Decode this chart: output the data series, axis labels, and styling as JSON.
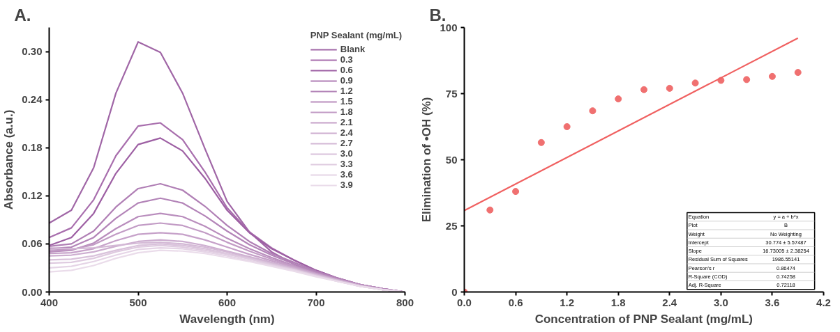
{
  "chart_data": [
    {
      "type": "line",
      "title": "A.",
      "xlabel": "Wavelength (nm)",
      "ylabel": "Absorbance (a.u.)",
      "legend_title": "PNP Sealant (mg/mL)",
      "legend": "top right",
      "grid": false,
      "line_style": "solid",
      "xlim": [
        400,
        800
      ],
      "xticks": [
        400,
        500,
        600,
        700,
        800
      ],
      "ylim": [
        0,
        0.33
      ],
      "yticks": [
        {
          "value": 0,
          "label": "0.00"
        },
        {
          "value": 0.06,
          "label": "0.06"
        },
        {
          "value": 0.12,
          "label": "0.12"
        },
        {
          "value": 0.18,
          "label": "0.18"
        },
        {
          "value": 0.24,
          "label": "0.24"
        },
        {
          "value": 0.3,
          "label": "0.30"
        }
      ],
      "x": [
        400,
        425,
        450,
        475,
        500,
        525,
        550,
        575,
        600,
        625,
        650,
        675,
        700,
        725,
        750,
        775,
        800
      ],
      "series": [
        {
          "name": "Blank",
          "color": "#a066a6",
          "values": [
            0.086,
            0.102,
            0.155,
            0.248,
            0.312,
            0.299,
            0.248,
            0.179,
            0.113,
            0.075,
            0.05,
            0.035,
            0.022,
            0.014,
            0.008,
            0.003,
            0
          ]
        },
        {
          "name": "0.3",
          "color": "#a86ead",
          "values": [
            0.068,
            0.08,
            0.115,
            0.17,
            0.207,
            0.211,
            0.19,
            0.15,
            0.105,
            0.075,
            0.055,
            0.04,
            0.027,
            0.017,
            0.009,
            0.004,
            0
          ]
        },
        {
          "name": "0.6",
          "color": "#9d5fa3",
          "values": [
            0.058,
            0.068,
            0.098,
            0.148,
            0.184,
            0.192,
            0.176,
            0.142,
            0.102,
            0.074,
            0.054,
            0.04,
            0.027,
            0.017,
            0.009,
            0.004,
            0
          ]
        },
        {
          "name": "0.9",
          "color": "#b07fb5",
          "values": [
            0.057,
            0.06,
            0.076,
            0.106,
            0.129,
            0.135,
            0.127,
            0.107,
            0.083,
            0.063,
            0.048,
            0.037,
            0.026,
            0.017,
            0.009,
            0.004,
            0
          ]
        },
        {
          "name": "1.2",
          "color": "#b384b8",
          "values": [
            0.054,
            0.056,
            0.068,
            0.092,
            0.111,
            0.117,
            0.111,
            0.095,
            0.076,
            0.059,
            0.046,
            0.035,
            0.025,
            0.016,
            0.009,
            0.004,
            0
          ]
        },
        {
          "name": "1.5",
          "color": "#b98dbd",
          "values": [
            0.05,
            0.052,
            0.061,
            0.079,
            0.094,
            0.098,
            0.094,
            0.082,
            0.067,
            0.054,
            0.043,
            0.033,
            0.024,
            0.016,
            0.009,
            0.004,
            0
          ]
        },
        {
          "name": "1.8",
          "color": "#c29bc5",
          "values": [
            0.052,
            0.053,
            0.059,
            0.072,
            0.083,
            0.086,
            0.083,
            0.074,
            0.062,
            0.051,
            0.041,
            0.032,
            0.023,
            0.015,
            0.008,
            0.003,
            0
          ]
        },
        {
          "name": "2.1",
          "color": "#c6a1c9",
          "values": [
            0.048,
            0.049,
            0.054,
            0.064,
            0.072,
            0.074,
            0.072,
            0.065,
            0.056,
            0.047,
            0.039,
            0.031,
            0.023,
            0.015,
            0.008,
            0.003,
            0
          ]
        },
        {
          "name": "2.4",
          "color": "#cdaed0",
          "values": [
            0.045,
            0.046,
            0.05,
            0.057,
            0.063,
            0.065,
            0.063,
            0.058,
            0.051,
            0.044,
            0.037,
            0.03,
            0.022,
            0.015,
            0.008,
            0.003,
            0
          ]
        },
        {
          "name": "2.7",
          "color": "#d3b8d5",
          "values": [
            0.055,
            0.054,
            0.055,
            0.058,
            0.061,
            0.062,
            0.06,
            0.056,
            0.05,
            0.043,
            0.036,
            0.029,
            0.021,
            0.014,
            0.008,
            0.003,
            0
          ]
        },
        {
          "name": "3.0",
          "color": "#d9c2db",
          "values": [
            0.04,
            0.041,
            0.045,
            0.052,
            0.058,
            0.06,
            0.058,
            0.054,
            0.048,
            0.042,
            0.035,
            0.028,
            0.021,
            0.014,
            0.007,
            0.003,
            0
          ]
        },
        {
          "name": "3.3",
          "color": "#dfcbe0",
          "values": [
            0.036,
            0.037,
            0.042,
            0.05,
            0.056,
            0.058,
            0.056,
            0.052,
            0.047,
            0.041,
            0.034,
            0.028,
            0.02,
            0.013,
            0.007,
            0.003,
            0
          ]
        },
        {
          "name": "3.6",
          "color": "#e5d4e6",
          "values": [
            0.03,
            0.032,
            0.038,
            0.046,
            0.053,
            0.055,
            0.054,
            0.05,
            0.045,
            0.039,
            0.033,
            0.027,
            0.02,
            0.013,
            0.007,
            0.003,
            0
          ]
        },
        {
          "name": "3.9",
          "color": "#eadcea",
          "values": [
            0.025,
            0.027,
            0.033,
            0.042,
            0.049,
            0.052,
            0.051,
            0.048,
            0.043,
            0.038,
            0.032,
            0.026,
            0.019,
            0.013,
            0.007,
            0.003,
            0
          ]
        }
      ]
    },
    {
      "type": "scatter",
      "title": "B.",
      "xlabel": "Concentration of PNP Sealant (mg/mL)",
      "ylabel": "Elimination of •OH (%)",
      "grid": false,
      "xlim": [
        0,
        4.2
      ],
      "xticks": [
        {
          "value": 0,
          "label": "0.0"
        },
        {
          "value": 0.6,
          "label": "0.6"
        },
        {
          "value": 1.2,
          "label": "1.2"
        },
        {
          "value": 1.8,
          "label": "1.8"
        },
        {
          "value": 2.4,
          "label": "2.4"
        },
        {
          "value": 3.0,
          "label": "3.0"
        },
        {
          "value": 3.6,
          "label": "3.6"
        },
        {
          "value": 4.2,
          "label": "4.2"
        }
      ],
      "ylim": [
        0,
        100
      ],
      "yticks": [
        0,
        25,
        50,
        75,
        100
      ],
      "x": [
        0,
        0.3,
        0.6,
        0.9,
        1.2,
        1.5,
        1.8,
        2.1,
        2.4,
        2.7,
        3.0,
        3.3,
        3.6,
        3.9
      ],
      "series": [
        {
          "type": "scatter",
          "marker": "circle",
          "color": "#f07070",
          "values": [
            0,
            31,
            38,
            56.5,
            62.5,
            68.5,
            73,
            76.5,
            77,
            79,
            80,
            80.3,
            81.5,
            83
          ]
        },
        {
          "type": "line",
          "color": "#f06060",
          "x": [
            0,
            3.9
          ],
          "values": [
            30.8,
            96
          ]
        }
      ],
      "annotations": [
        "Equation\ty = a + b*x",
        "Plot\tB",
        "Weight\tNo Weighting",
        "Intercept\t30.774 ± 5.57487",
        "Slope\t16.73005 ± 2.38254",
        "Residual Sum of Squares\t1986.55141",
        "Pearson's r\t0.86474",
        "R-Square (COD)\t0.74258",
        "Adj. R-Square\t0.72118"
      ]
    }
  ]
}
